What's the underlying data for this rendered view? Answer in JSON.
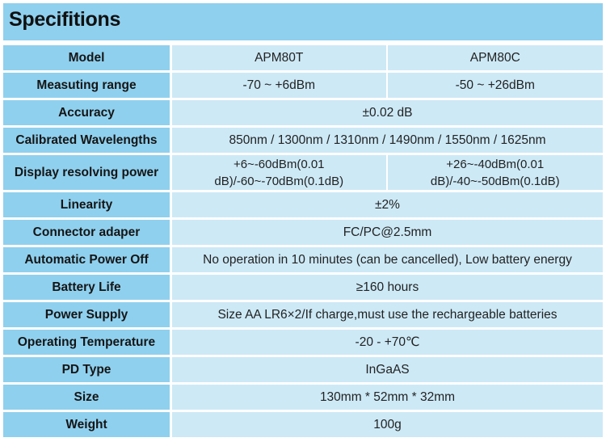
{
  "title": "Specifitions",
  "rows": [
    {
      "label": "Model",
      "values": [
        "APM80T",
        "APM80C"
      ]
    },
    {
      "label": "Measuting range",
      "values": [
        "-70 ~ +6dBm",
        "-50 ~ +26dBm"
      ]
    },
    {
      "label": "Accuracy",
      "values": [
        "±0.02 dB"
      ]
    },
    {
      "label": "Calibrated Wavelengths",
      "values": [
        "850nm / 1300nm / 1310nm / 1490nm / 1550nm / 1625nm"
      ]
    },
    {
      "label": "Display resolving power",
      "values": [
        "+6~-60dBm(0.01 dB)/-60~-70dBm(0.1dB)",
        "+26~-40dBm(0.01 dB)/-40~-50dBm(0.1dB)"
      ]
    },
    {
      "label": "Linearity",
      "values": [
        "±2%"
      ]
    },
    {
      "label": "Connector adaper",
      "values": [
        "FC/PC@2.5mm"
      ]
    },
    {
      "label": "Automatic Power Off",
      "values": [
        "No operation in 10 minutes (can be cancelled), Low battery energy"
      ]
    },
    {
      "label": "Battery Life",
      "values": [
        "≥160 hours"
      ]
    },
    {
      "label": "Power Supply",
      "values": [
        "Size AA LR6×2/If charge,must use the rechargeable batteries"
      ]
    },
    {
      "label": "Operating Temperature",
      "values": [
        "-20 - +70℃"
      ]
    },
    {
      "label": "PD Type",
      "values": [
        "InGaAS"
      ]
    },
    {
      "label": "Size",
      "values": [
        "130mm * 52mm * 32mm"
      ]
    },
    {
      "label": "Weight",
      "values": [
        "100g"
      ]
    }
  ]
}
